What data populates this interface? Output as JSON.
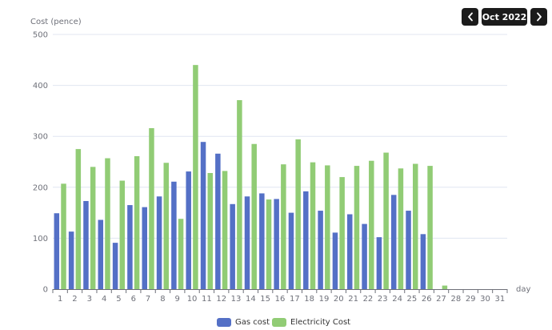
{
  "nav": {
    "prev_icon": "chevron-left-icon",
    "next_icon": "chevron-right-icon",
    "month_label": "Oct 2022"
  },
  "colors": {
    "gas": "#5470c6",
    "electricity": "#91cc75",
    "axis": "#6e7079",
    "grid": "#e0e6f1",
    "button_bg": "#1b1b1b"
  },
  "chart_data": {
    "type": "bar",
    "ylabel": "Cost (pence)",
    "xlabel": "day",
    "ylim": [
      0,
      500
    ],
    "yticks": [
      0,
      100,
      200,
      300,
      400,
      500
    ],
    "grid": true,
    "legend_position": "bottom-center",
    "categories": [
      "1",
      "2",
      "3",
      "4",
      "5",
      "6",
      "7",
      "8",
      "9",
      "10",
      "11",
      "12",
      "13",
      "14",
      "15",
      "16",
      "17",
      "18",
      "19",
      "20",
      "21",
      "22",
      "23",
      "24",
      "25",
      "26",
      "27",
      "28",
      "29",
      "30",
      "31"
    ],
    "series": [
      {
        "name": "Gas cost",
        "color": "#5470c6",
        "values": [
          149,
          113,
          173,
          136,
          91,
          165,
          161,
          182,
          211,
          231,
          289,
          266,
          167,
          182,
          188,
          177,
          150,
          192,
          154,
          111,
          147,
          128,
          102,
          185,
          154,
          108,
          0,
          0,
          0,
          0,
          0
        ]
      },
      {
        "name": "Electricity Cost",
        "color": "#91cc75",
        "values": [
          207,
          275,
          240,
          257,
          213,
          261,
          316,
          248,
          138,
          440,
          228,
          232,
          371,
          285,
          176,
          245,
          294,
          249,
          243,
          220,
          242,
          252,
          268,
          237,
          246,
          242,
          7,
          0,
          0,
          0,
          0
        ]
      }
    ]
  }
}
